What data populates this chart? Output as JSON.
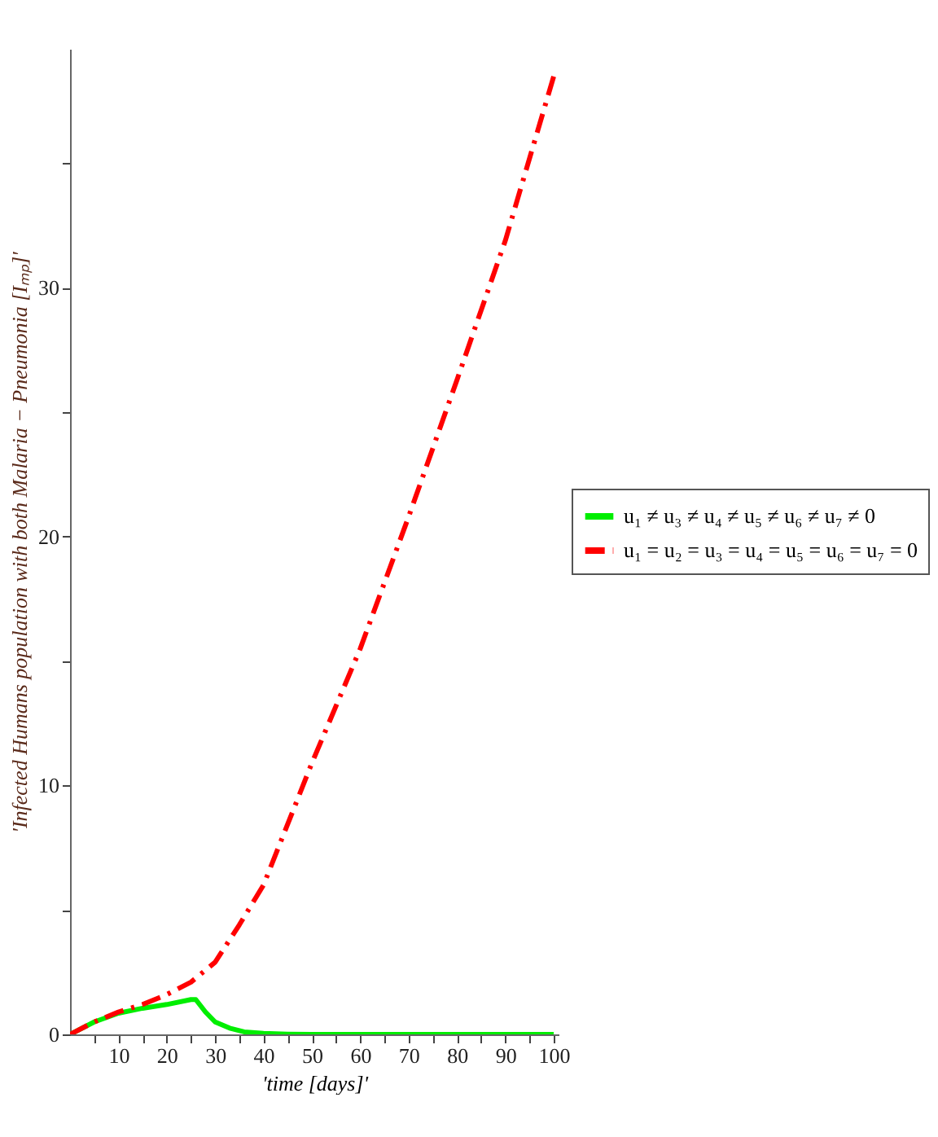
{
  "chart_data": {
    "type": "line",
    "xlabel": "'time [days]'",
    "ylabel": "'Infected Humans population with both Malaria − Pneumonia [Iₘₚ]'",
    "xlim": [
      0,
      101
    ],
    "ylim": [
      0,
      39.6
    ],
    "xticks": [
      {
        "value": 5,
        "label": null
      },
      10,
      {
        "value": 15,
        "label": null
      },
      20,
      {
        "value": 25,
        "label": null
      },
      30,
      {
        "value": 35,
        "label": null
      },
      40,
      {
        "value": 45,
        "label": null
      },
      50,
      {
        "value": 55,
        "label": null
      },
      60,
      {
        "value": 65,
        "label": null
      },
      70,
      {
        "value": 75,
        "label": null
      },
      80,
      {
        "value": 85,
        "label": null
      },
      90,
      {
        "value": 95,
        "label": null
      },
      100
    ],
    "yticks": [
      0,
      {
        "value": 5,
        "label": null
      },
      10,
      {
        "value": 15,
        "label": null
      },
      20,
      {
        "value": 25,
        "label": null
      },
      30,
      {
        "value": 35,
        "label": null
      }
    ],
    "legend": "right",
    "grid": false,
    "series": [
      {
        "name": "u₁ ≠ u₃ ≠ u₄ ≠ u₅ ≠ u₆ ≠ u₇ ≠ 0",
        "color": "#00ee00",
        "line_style": "solid",
        "x": [
          0,
          5,
          10,
          15,
          20,
          25,
          26,
          28,
          30,
          33,
          36,
          40,
          45,
          50,
          60,
          70,
          80,
          90,
          100
        ],
        "values": [
          0,
          0.5,
          0.85,
          1.05,
          1.2,
          1.4,
          1.4,
          0.9,
          0.5,
          0.25,
          0.1,
          0.04,
          0.01,
          0,
          0,
          0,
          0,
          0,
          0
        ]
      },
      {
        "name": "u₁ = u₂ = u₃ = u₄ = u₅ = u₆ = u₇ = 0",
        "color": "#ff0000",
        "line_style": "dashdot",
        "x": [
          0,
          5,
          10,
          15,
          20,
          25,
          30,
          35,
          40,
          50,
          60,
          70,
          80,
          90,
          100
        ],
        "values": [
          0,
          0.5,
          0.9,
          1.2,
          1.6,
          2.1,
          2.9,
          4.4,
          6.0,
          10.9,
          15.5,
          20.8,
          26.3,
          31.9,
          38.5
        ]
      }
    ]
  }
}
